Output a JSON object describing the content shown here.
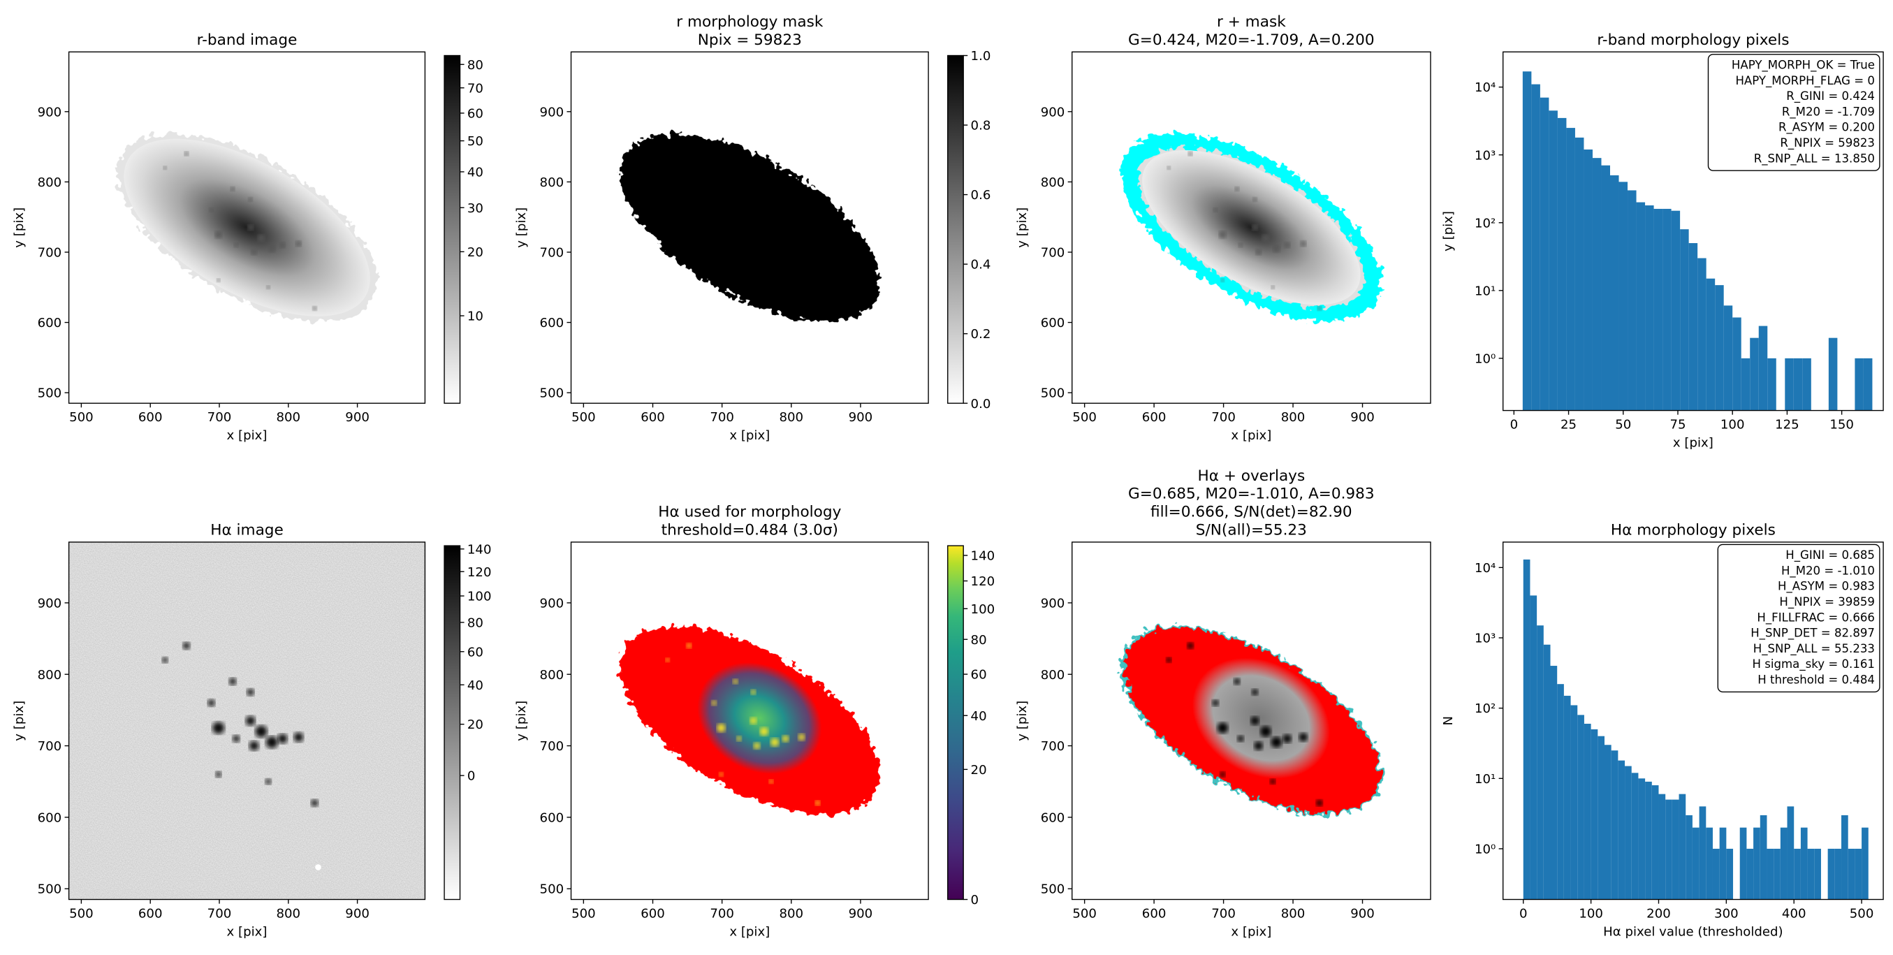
{
  "chart_data": [
    {
      "type": "image",
      "title": [
        "r-band image"
      ],
      "xlabel": "x [pix]",
      "ylabel": "y [pix]",
      "xlim": [
        482,
        998
      ],
      "ylim": [
        485,
        985
      ],
      "xticks": [
        500,
        600,
        700,
        800,
        900
      ],
      "yticks": [
        500,
        600,
        700,
        800,
        900
      ],
      "image": "r",
      "colorbar": {
        "cmap": "gray_r",
        "stretch": "sqrt",
        "clim": [
          5,
          84
        ],
        "ticks": [
          10,
          20,
          30,
          40,
          50,
          60,
          70,
          80
        ]
      }
    },
    {
      "type": "image",
      "title": [
        "r morphology mask",
        "Npix = 59823"
      ],
      "xlabel": "x [pix]",
      "ylabel": "y [pix]",
      "xlim": [
        482,
        998
      ],
      "ylim": [
        485,
        985
      ],
      "xticks": [
        500,
        600,
        700,
        800,
        900
      ],
      "yticks": [
        500,
        600,
        700,
        800,
        900
      ],
      "image": "mask",
      "colorbar": {
        "cmap": "gray_r",
        "stretch": "linear",
        "clim": [
          0,
          1
        ],
        "ticks": [
          {
            "value": 0,
            "label": "0.0"
          },
          0.2,
          0.4,
          0.6,
          0.8,
          {
            "value": 1,
            "label": "1.0"
          }
        ]
      }
    },
    {
      "type": "image",
      "title": [
        "r + mask",
        "G=0.424, M20=-1.709, A=0.200"
      ],
      "xlabel": "x [pix]",
      "ylabel": "y [pix]",
      "xlim": [
        482,
        998
      ],
      "ylim": [
        485,
        985
      ],
      "xticks": [
        500,
        600,
        700,
        800,
        900
      ],
      "yticks": [
        500,
        600,
        700,
        800,
        900
      ],
      "image": "rmask"
    },
    {
      "type": "histogram",
      "title": [
        "r-band morphology pixels"
      ],
      "xlabel": "x [pix]",
      "ylabel": "y [pix]",
      "color": "#1f77b4",
      "log_y": true,
      "xlim": [
        -5,
        169
      ],
      "ylim": [
        0.17,
        33000
      ],
      "xticks": [
        0,
        25,
        50,
        75,
        100,
        125,
        150
      ],
      "yticks": [
        {
          "value": 1,
          "label": "10⁰"
        },
        {
          "value": 10,
          "label": "10¹"
        },
        {
          "value": 100,
          "label": "10²"
        },
        {
          "value": 1000,
          "label": "10³"
        },
        {
          "value": 10000,
          "label": "10⁴"
        }
      ],
      "bins": [
        4,
        8,
        12,
        16,
        20,
        24,
        28,
        32,
        36,
        40,
        44,
        48,
        52,
        56,
        60,
        64,
        68,
        72,
        76,
        80,
        84,
        88,
        92,
        96,
        100,
        104,
        108,
        112,
        116,
        120,
        124,
        128,
        132,
        136,
        140,
        144,
        148,
        152,
        156,
        160,
        164
      ],
      "values": [
        17000,
        11000,
        7000,
        4500,
        3500,
        2500,
        1800,
        1200,
        900,
        700,
        500,
        400,
        300,
        200,
        180,
        160,
        160,
        150,
        80,
        50,
        30,
        15,
        12,
        6,
        4,
        1,
        2,
        3,
        1,
        0,
        1,
        1,
        1,
        0,
        0,
        2,
        0,
        0,
        1,
        1
      ],
      "annotation": [
        "HAPY_MORPH_OK = True",
        "HAPY_MORPH_FLAG = 0",
        "R_GINI = 0.424",
        "R_M20 = -1.709",
        "R_ASYM = 0.200",
        "R_NPIX = 59823",
        "R_SNP_ALL = 13.850"
      ]
    },
    {
      "type": "image",
      "title": [
        "Hα image"
      ],
      "xlabel": "x [pix]",
      "ylabel": "y [pix]",
      "xlim": [
        482,
        998
      ],
      "ylim": [
        485,
        985
      ],
      "xticks": [
        500,
        600,
        700,
        800,
        900
      ],
      "yticks": [
        500,
        600,
        700,
        800,
        900
      ],
      "image": "ha",
      "colorbar": {
        "cmap": "gray_r",
        "stretch": "sqrt",
        "clim": [
          -20,
          143
        ],
        "ticks": [
          0,
          20,
          40,
          60,
          80,
          100,
          120,
          140
        ]
      }
    },
    {
      "type": "image",
      "title": [
        "Hα used for morphology",
        "threshold=0.484 (3.0σ)"
      ],
      "xlabel": "x [pix]",
      "ylabel": "y [pix]",
      "xlim": [
        482,
        998
      ],
      "ylim": [
        485,
        985
      ],
      "xticks": [
        500,
        600,
        700,
        800,
        900
      ],
      "yticks": [
        500,
        600,
        700,
        800,
        900
      ],
      "image": "hause",
      "colorbar": {
        "cmap": "viridis",
        "stretch": "sqrt",
        "clim": [
          0,
          148
        ],
        "ticks": [
          0,
          20,
          40,
          60,
          80,
          100,
          120,
          140
        ]
      }
    },
    {
      "type": "image",
      "title": [
        "Hα + overlays",
        "G=0.685, M20=-1.010, A=0.983",
        "fill=0.666, S/N(det)=82.90",
        "S/N(all)=55.23"
      ],
      "xlabel": "x [pix]",
      "ylabel": "y [pix]",
      "xlim": [
        482,
        998
      ],
      "ylim": [
        485,
        985
      ],
      "xticks": [
        500,
        600,
        700,
        800,
        900
      ],
      "yticks": [
        500,
        600,
        700,
        800,
        900
      ],
      "image": "haover"
    },
    {
      "type": "histogram",
      "title": [
        "Hα morphology pixels"
      ],
      "xlabel": "Hα pixel value (thresholded)",
      "ylabel": "N",
      "color": "#1f77b4",
      "log_y": true,
      "xlim": [
        -30,
        532
      ],
      "ylim": [
        0.19,
        23000
      ],
      "xticks": [
        0,
        100,
        200,
        300,
        400,
        500
      ],
      "yticks": [
        {
          "value": 1,
          "label": "10⁰"
        },
        {
          "value": 10,
          "label": "10¹"
        },
        {
          "value": 100,
          "label": "10²"
        },
        {
          "value": 1000,
          "label": "10³"
        },
        {
          "value": 10000,
          "label": "10⁴"
        }
      ],
      "bins": [
        0,
        10,
        20,
        30,
        40,
        50,
        60,
        70,
        80,
        90,
        100,
        110,
        120,
        130,
        140,
        150,
        160,
        170,
        180,
        190,
        200,
        210,
        220,
        230,
        240,
        250,
        260,
        270,
        280,
        290,
        300,
        310,
        320,
        330,
        340,
        350,
        360,
        370,
        380,
        390,
        400,
        410,
        420,
        430,
        440,
        450,
        460,
        470,
        480,
        490,
        500,
        510
      ],
      "values": [
        13000,
        4000,
        1500,
        800,
        400,
        220,
        150,
        110,
        80,
        60,
        50,
        40,
        30,
        25,
        18,
        15,
        12,
        10,
        9,
        8,
        6,
        5,
        5,
        6,
        3,
        2,
        4,
        2,
        1,
        2,
        1,
        0,
        2,
        1,
        2,
        3,
        1,
        1,
        2,
        4,
        1,
        2,
        1,
        1,
        0,
        1,
        1,
        3,
        1,
        1,
        2
      ],
      "annotation": [
        "H_GINI = 0.685",
        "H_M20 = -1.010",
        "H_ASYM = 0.983",
        "H_NPIX = 39859",
        "H_FILLFRAC = 0.666",
        "H_SNP_DET = 82.897",
        "H_SNP_ALL = 55.233",
        "H sigma_sky = 0.161",
        "H threshold = 0.484"
      ]
    }
  ]
}
